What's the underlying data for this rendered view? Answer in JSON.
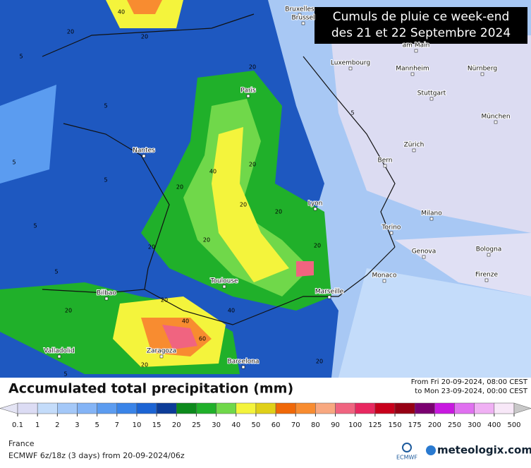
{
  "overlay_title": [
    "Cumuls de pluie ce week-end",
    "des 21 et 22 Septembre 2024"
  ],
  "cities": [
    "Bruxelles",
    "Brussel",
    "am Main",
    "Luxembourg",
    "Mannheim",
    "Nürnberg",
    "Paris",
    "Stuttgart",
    "München",
    "Nantes",
    "Zürich",
    "Bern",
    "Lyon",
    "Milano",
    "Torino",
    "Genova",
    "Bologna",
    "Monaco",
    "Firenze",
    "Toulouse",
    "Marseille",
    "Bilbao",
    "Valladolid",
    "Zaragoza",
    "Barcelona"
  ],
  "contour_labels": [
    40,
    20,
    20,
    5,
    20,
    5,
    5,
    20,
    40,
    20,
    20,
    5,
    5,
    20,
    20,
    40,
    20,
    20,
    20,
    5,
    20,
    60,
    40,
    20,
    20,
    5,
    5
  ],
  "legend": {
    "title": "Accumulated total precipitation (mm)",
    "from": "From Fri 20-09-2024, 08:00 CEST",
    "to": "to Mon 23-09-2024, 00:00 CEST",
    "values": [
      0.1,
      1,
      2,
      3,
      5,
      7,
      10,
      15,
      20,
      25,
      30,
      40,
      50,
      60,
      70,
      80,
      90,
      100,
      125,
      150,
      175,
      200,
      250,
      300,
      400,
      500
    ],
    "colors": [
      "#e4e4f4",
      "#dcdcf4",
      "#c4dcfa",
      "#a4c8f8",
      "#84b4f6",
      "#5c9cf0",
      "#3a84e8",
      "#1c64d4",
      "#0c3c98",
      "#0c8a1c",
      "#20b02a",
      "#70d84a",
      "#f4f43c",
      "#e0d018",
      "#f06808",
      "#f88c30",
      "#f8a880",
      "#f06480",
      "#e82860",
      "#c8001c",
      "#960014",
      "#7a0070",
      "#c818e0",
      "#e070f0",
      "#f0b0f4",
      "#f8e8f8",
      "#c8c8c8"
    ]
  },
  "footer": {
    "region": "France",
    "model": "ECMWF 6z/18z (3 days) from 20-09-2024/06z",
    "ecmwf": "ECMWF",
    "brand": "meteologix.com"
  }
}
